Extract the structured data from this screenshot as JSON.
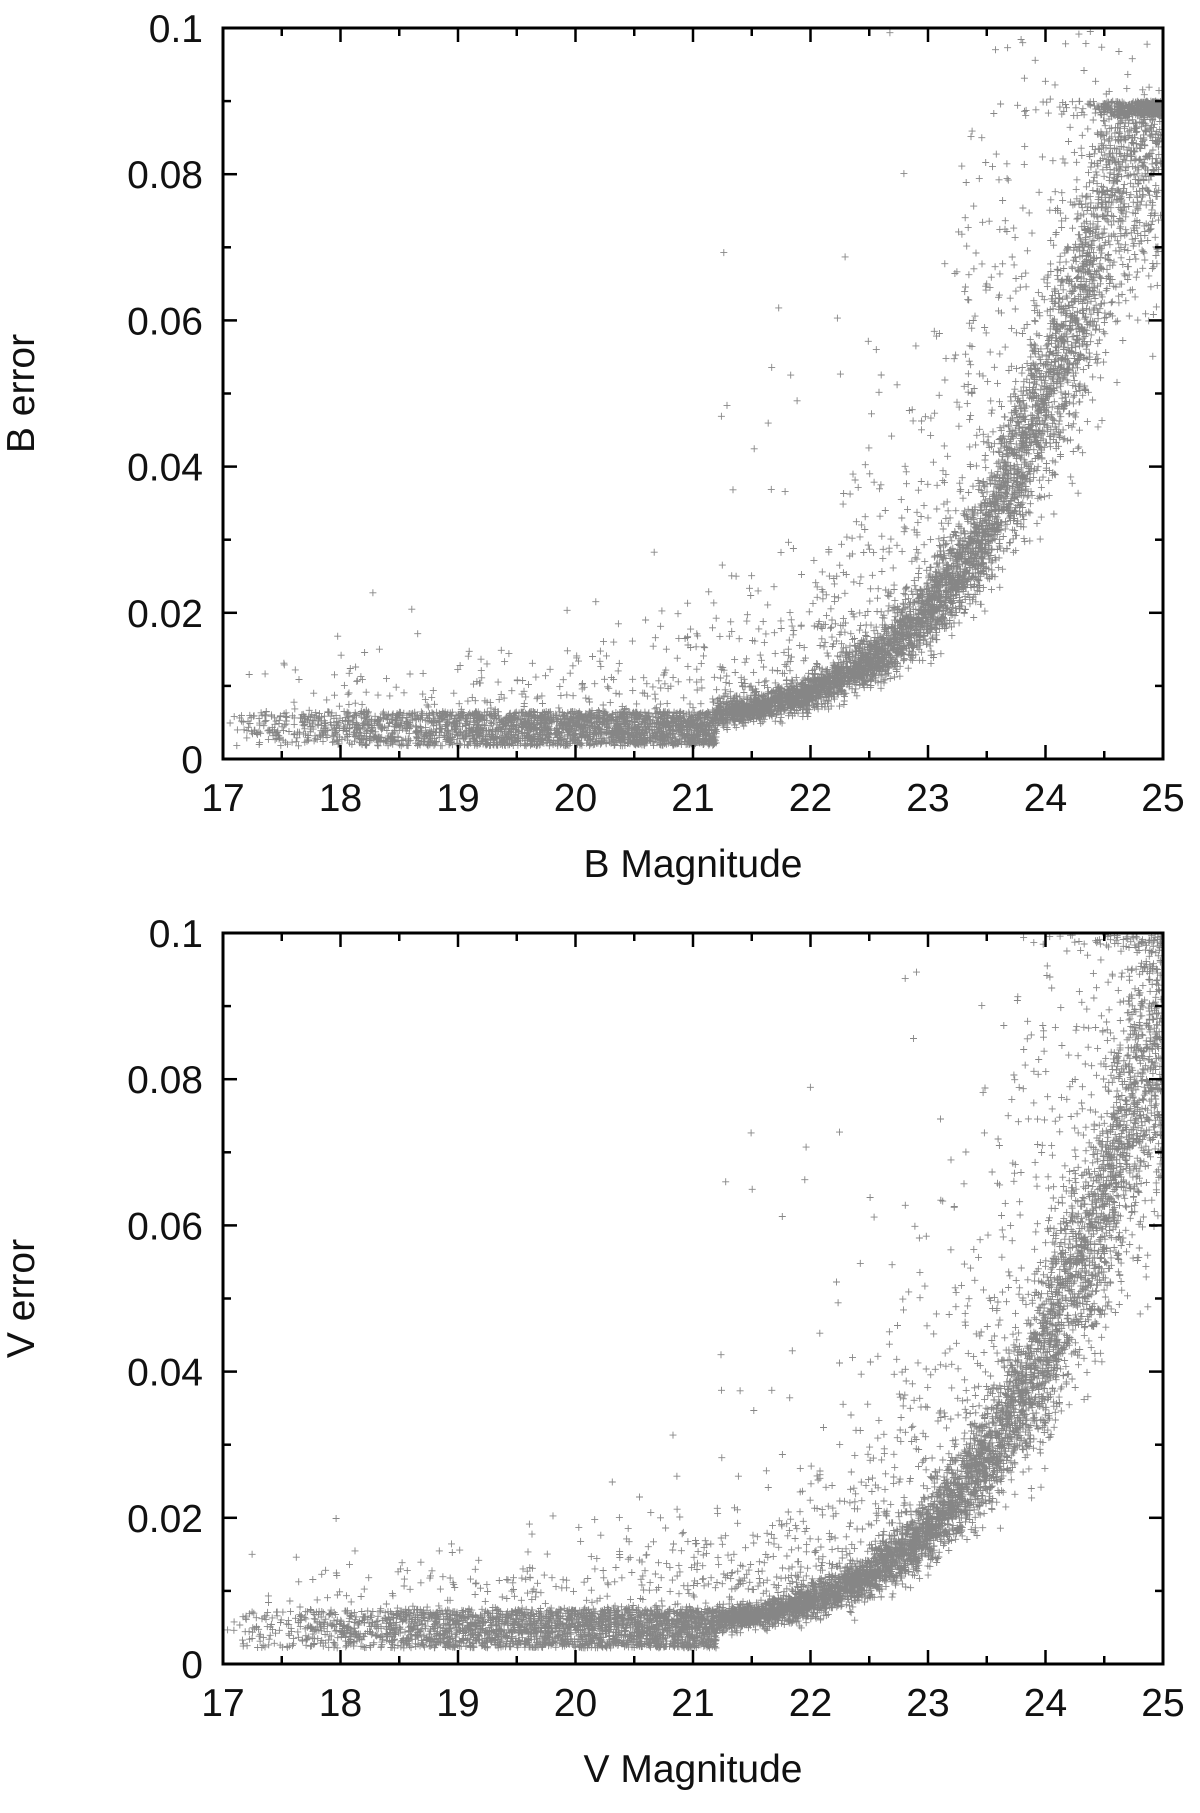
{
  "chart_data": [
    {
      "type": "scatter",
      "xlabel": "B Magnitude",
      "ylabel": "B error",
      "xlim": [
        17,
        25
      ],
      "ylim": [
        0,
        0.1
      ],
      "x_ticks": [
        "17",
        "18",
        "19",
        "20",
        "21",
        "22",
        "23",
        "24",
        "25"
      ],
      "y_ticks": [
        "0",
        "0.02",
        "0.04",
        "0.06",
        "0.08",
        "0.1"
      ],
      "grid": false,
      "marker": "plus",
      "color": "#222222",
      "envelope": {
        "floor_lower": 0.0018,
        "floor_upper": 0.0065,
        "ridge": [
          {
            "mag": 17.0,
            "err": 0.0038
          },
          {
            "mag": 18.0,
            "err": 0.0036
          },
          {
            "mag": 19.0,
            "err": 0.0038
          },
          {
            "mag": 20.0,
            "err": 0.0042
          },
          {
            "mag": 21.0,
            "err": 0.0055
          },
          {
            "mag": 21.5,
            "err": 0.0068
          },
          {
            "mag": 22.0,
            "err": 0.009
          },
          {
            "mag": 22.5,
            "err": 0.013
          },
          {
            "mag": 23.0,
            "err": 0.02
          },
          {
            "mag": 23.5,
            "err": 0.031
          },
          {
            "mag": 24.0,
            "err": 0.049
          },
          {
            "mag": 24.3,
            "err": 0.062
          },
          {
            "mag": 24.5,
            "err": 0.075
          },
          {
            "mag": 24.7,
            "err": 0.086
          },
          {
            "mag": 25.0,
            "err": 0.09
          }
        ],
        "cap": 0.09,
        "outlier_max": 0.1,
        "points": 9000
      }
    },
    {
      "type": "scatter",
      "xlabel": "V Magnitude",
      "ylabel": "V error",
      "xlim": [
        17,
        25
      ],
      "ylim": [
        0,
        0.1
      ],
      "x_ticks": [
        "17",
        "18",
        "19",
        "20",
        "21",
        "22",
        "23",
        "24",
        "25"
      ],
      "y_ticks": [
        "0",
        "0.02",
        "0.04",
        "0.06",
        "0.08",
        "0.1"
      ],
      "grid": false,
      "marker": "plus",
      "color": "#222222",
      "envelope": {
        "floor_lower": 0.0022,
        "floor_upper": 0.0075,
        "ridge": [
          {
            "mag": 17.0,
            "err": 0.0045
          },
          {
            "mag": 18.0,
            "err": 0.0042
          },
          {
            "mag": 19.0,
            "err": 0.0042
          },
          {
            "mag": 20.0,
            "err": 0.0045
          },
          {
            "mag": 21.0,
            "err": 0.0055
          },
          {
            "mag": 21.5,
            "err": 0.0065
          },
          {
            "mag": 22.0,
            "err": 0.0085
          },
          {
            "mag": 22.5,
            "err": 0.012
          },
          {
            "mag": 23.0,
            "err": 0.018
          },
          {
            "mag": 23.5,
            "err": 0.028
          },
          {
            "mag": 24.0,
            "err": 0.042
          },
          {
            "mag": 24.3,
            "err": 0.055
          },
          {
            "mag": 24.5,
            "err": 0.062
          },
          {
            "mag": 24.7,
            "err": 0.075
          },
          {
            "mag": 25.0,
            "err": 0.085
          }
        ],
        "cap": 0.1,
        "outlier_max": 0.1,
        "points": 9000
      }
    }
  ]
}
